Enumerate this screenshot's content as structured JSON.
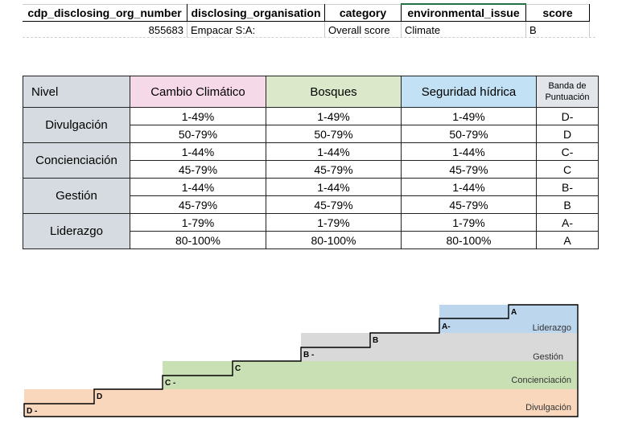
{
  "sheet": {
    "headers": [
      "cdp_disclosing_org_number",
      "disclosing_organisation",
      "category",
      "environmental_issue",
      "score"
    ],
    "row": [
      "855683",
      "Empacar S:A:",
      "Overall score",
      "Climate",
      "B"
    ]
  },
  "cdp_table": {
    "headers": {
      "nivel": "Nivel",
      "cambio": "Cambio Climático",
      "bosques": "Bosques",
      "seguridad": "Seguridad hídrica",
      "banda": "Banda de Puntuación"
    },
    "levels": [
      "Divulgación",
      "Concienciación",
      "Gestión",
      "Liderazgo"
    ],
    "rows": [
      {
        "range": "1-49%",
        "band": "D-"
      },
      {
        "range": "50-79%",
        "band": "D"
      },
      {
        "range": "1-44%",
        "band": "C-"
      },
      {
        "range": "45-79%",
        "band": "C"
      },
      {
        "range": "1-44%",
        "band": "B-"
      },
      {
        "range": "45-79%",
        "band": "B"
      },
      {
        "range": "1-79%",
        "band": "A-"
      },
      {
        "range": "80-100%",
        "band": "A"
      }
    ]
  },
  "staircase": {
    "levels": [
      "Divulgación",
      "Concienciación",
      "Gestión",
      "Liderazgo"
    ],
    "steps": [
      "D -",
      "D",
      "C -",
      "C",
      "B -",
      "B",
      "A-",
      "A"
    ],
    "colors": {
      "divulgacion": "#f8d7bd",
      "concienciacion": "#c8e0b3",
      "gestion": "#d9d9d9",
      "liderazgo": "#bcd6ee"
    }
  }
}
